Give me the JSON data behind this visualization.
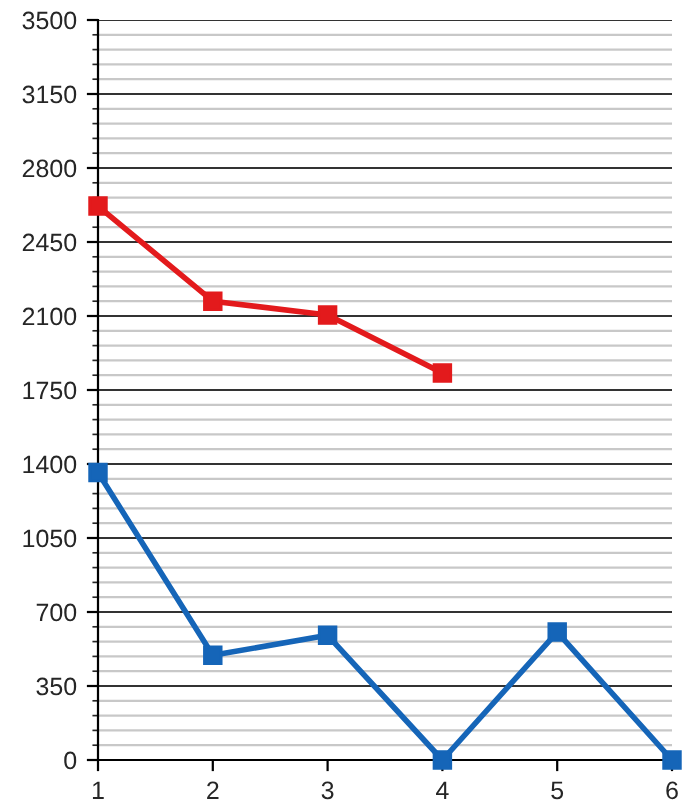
{
  "chart_data": {
    "type": "line",
    "x": [
      1,
      2,
      3,
      4,
      5,
      6
    ],
    "series": [
      {
        "color": "#e31a1c",
        "values": [
          2620,
          2170,
          2105,
          1830,
          null,
          null
        ]
      },
      {
        "color": "#1565b8",
        "values": [
          1360,
          495,
          590,
          0,
          605,
          0
        ]
      }
    ],
    "xlim": [
      1,
      6
    ],
    "xticks": [
      1,
      2,
      3,
      4,
      5,
      6
    ],
    "ylim": [
      0,
      3500
    ],
    "yticks": [
      0,
      350,
      700,
      1050,
      1400,
      1750,
      2100,
      2450,
      2800,
      3150,
      3500
    ],
    "grid": "y",
    "marker": "square",
    "line_style": "solid"
  }
}
